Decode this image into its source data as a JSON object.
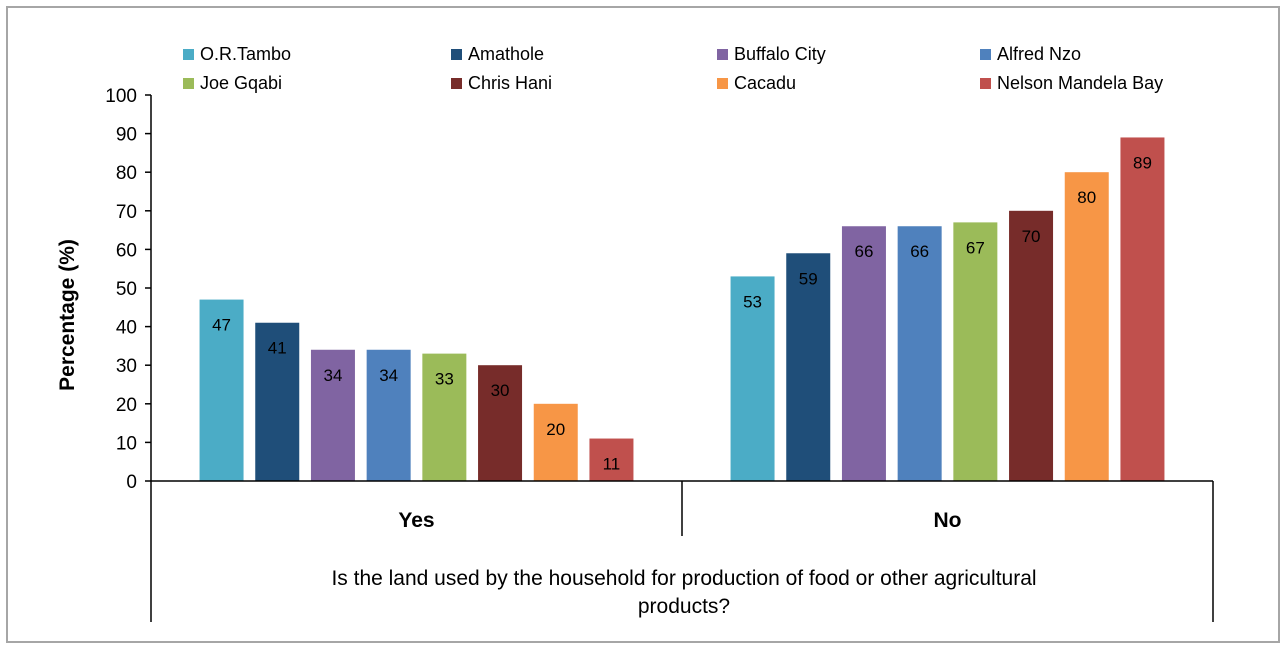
{
  "chart_data": {
    "type": "bar",
    "categories": [
      "Yes",
      "No"
    ],
    "xlabel": "Is the land used by the household for production of food or other agricultural products?",
    "ylabel": "Percentage (%)",
    "ylim": [
      0,
      100
    ],
    "yticks": [
      0,
      10,
      20,
      30,
      40,
      50,
      60,
      70,
      80,
      90,
      100
    ],
    "grid": false,
    "legend_position": "top",
    "series": [
      {
        "name": "O.R.Tambo",
        "color": "#4bacc6",
        "values": [
          47,
          53
        ]
      },
      {
        "name": "Amathole",
        "color": "#1f4e79",
        "values": [
          41,
          59
        ]
      },
      {
        "name": "Buffalo City",
        "color": "#8064a2",
        "values": [
          34,
          66
        ]
      },
      {
        "name": "Alfred Nzo",
        "color": "#4f81bd",
        "values": [
          34,
          66
        ]
      },
      {
        "name": "Joe Gqabi",
        "color": "#9bbb59",
        "values": [
          33,
          67
        ]
      },
      {
        "name": "Chris Hani",
        "color": "#772c2a",
        "values": [
          30,
          70
        ]
      },
      {
        "name": "Cacadu",
        "color": "#f79646",
        "values": [
          20,
          80
        ]
      },
      {
        "name": "Nelson Mandela Bay",
        "color": "#c0504d",
        "values": [
          11,
          89
        ]
      }
    ]
  }
}
